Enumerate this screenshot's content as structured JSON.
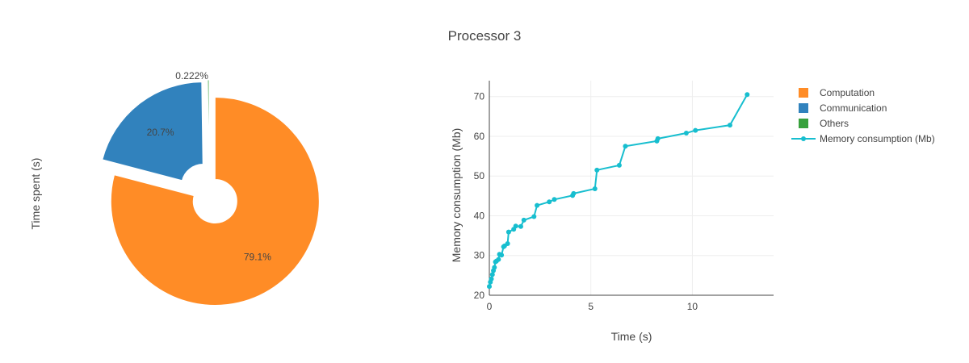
{
  "chart_data": [
    {
      "type": "pie",
      "title": "Processor 3",
      "ylabel": "Time spent (s)",
      "hole": true,
      "slices": [
        {
          "label": "Computation",
          "percent": 79.1,
          "value": 0.791,
          "color": "#ff8c26",
          "pulled": true
        },
        {
          "label": "Communication",
          "percent": 20.7,
          "value": 0.207,
          "color": "#3182bd",
          "pulled": true
        },
        {
          "label": "Others",
          "percent": 0.222,
          "value": 0.00222,
          "color": "#38a13d",
          "pulled": true
        }
      ],
      "text_labels": [
        "79.1%",
        "20.7%",
        "0.222%"
      ]
    },
    {
      "type": "line",
      "xlabel": "Time (s)",
      "ylabel": "Memory consumption (Mb)",
      "xlim": [
        0,
        14
      ],
      "ylim": [
        20,
        74
      ],
      "xticks": [
        0,
        5,
        10
      ],
      "yticks": [
        20,
        30,
        40,
        50,
        60,
        70
      ],
      "grid": true,
      "series": [
        {
          "name": "Memory consumption (Mb)",
          "color": "#17becf",
          "markers": true,
          "x": [
            0.0,
            0.05,
            0.1,
            0.15,
            0.2,
            0.25,
            0.3,
            0.35,
            0.45,
            0.5,
            0.6,
            0.7,
            0.75,
            0.9,
            0.95,
            1.2,
            1.3,
            1.55,
            1.7,
            2.2,
            2.35,
            2.95,
            3.2,
            4.1,
            4.15,
            5.2,
            5.3,
            6.4,
            6.7,
            8.25,
            8.3,
            9.7,
            10.15,
            11.85,
            12.7
          ],
          "y": [
            22.2,
            23.3,
            24.1,
            25.2,
            26.2,
            27.0,
            28.4,
            28.6,
            29.0,
            30.3,
            30.1,
            32.2,
            32.4,
            33.0,
            35.9,
            36.6,
            37.4,
            37.3,
            38.9,
            39.8,
            42.6,
            43.5,
            44.1,
            45.1,
            45.6,
            46.8,
            51.5,
            52.7,
            57.5,
            58.8,
            59.4,
            60.8,
            61.5,
            62.8,
            70.5
          ]
        }
      ]
    }
  ],
  "legend": {
    "position": "top-right",
    "entries": [
      {
        "label": "Computation",
        "color": "#ff8c26",
        "kind": "square"
      },
      {
        "label": "Communication",
        "color": "#3182bd",
        "kind": "square"
      },
      {
        "label": "Others",
        "color": "#38a13d",
        "kind": "square"
      },
      {
        "label": "Memory consumption (Mb)",
        "color": "#17becf",
        "kind": "line-marker"
      }
    ]
  }
}
